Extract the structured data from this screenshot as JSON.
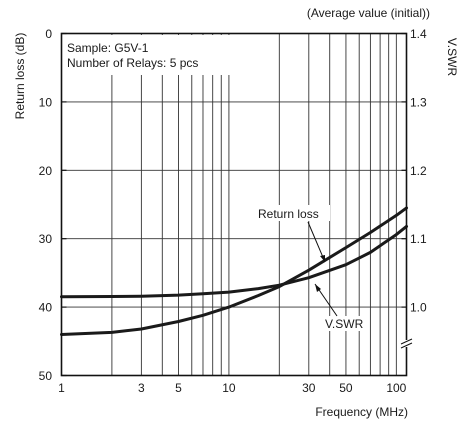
{
  "chart_data": {
    "type": "line",
    "note": "(Average value (initial))",
    "annotation_lines": [
      "Sample: G5V-1",
      "Number of Relays: 5 pcs"
    ],
    "xlabel": "Frequency (MHz)",
    "ylabel_left": "Return loss (dB)",
    "ylabel_right": "V.SWR",
    "x_scale": "log",
    "xlim": [
      1,
      115
    ],
    "ylim_left": [
      50,
      0
    ],
    "ylim_right": [
      0.9,
      1.4
    ],
    "x_ticks": [
      1,
      3,
      5,
      10,
      30,
      50,
      100
    ],
    "x_tick_labels": [
      "1",
      "3",
      "5",
      "10",
      "30",
      "50",
      "100"
    ],
    "y_left_ticks": [
      0,
      10,
      20,
      30,
      40,
      50
    ],
    "y_left_tick_labels": [
      "0",
      "10",
      "20",
      "30",
      "40",
      "50"
    ],
    "y_right_ticks": [
      1.4,
      1.3,
      1.2,
      1.1,
      1.0
    ],
    "y_right_tick_labels": [
      "1.4",
      "1.3",
      "1.2",
      "1.1",
      "1.0"
    ],
    "grid": true,
    "series": [
      {
        "name": "Return loss",
        "axis": "left",
        "x": [
          1,
          2,
          3,
          5,
          7,
          10,
          15,
          20,
          30,
          50,
          70,
          100,
          115
        ],
        "y": [
          44.0,
          43.7,
          43.2,
          42.1,
          41.2,
          40.0,
          38.3,
          37.0,
          34.6,
          31.3,
          29.1,
          26.6,
          25.5
        ]
      },
      {
        "name": "V.SWR",
        "axis": "right",
        "x": [
          1,
          2,
          3,
          5,
          7,
          10,
          15,
          20,
          30,
          50,
          70,
          100,
          115
        ],
        "y": [
          1.015,
          1.0155,
          1.016,
          1.0175,
          1.0195,
          1.022,
          1.027,
          1.032,
          1.043,
          1.062,
          1.08,
          1.106,
          1.118
        ]
      }
    ]
  }
}
